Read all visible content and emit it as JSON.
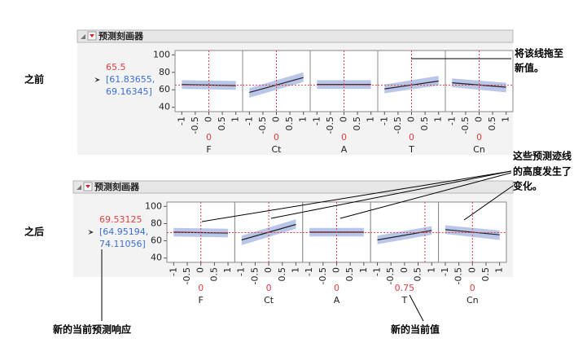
{
  "axis": {
    "ylim": [
      35,
      105
    ],
    "yticks": [
      40,
      60,
      80,
      100
    ],
    "xlim": [
      -1.25,
      1.25
    ],
    "xticks": [
      -1,
      -0.5,
      0,
      0.5,
      1
    ],
    "trace_x": [
      -1,
      1
    ]
  },
  "profilers": [
    {
      "label": "之前",
      "title": "预测刻画器",
      "response": 65.5,
      "ci": [
        "[61.83655,",
        "69.16345]"
      ],
      "factors": [
        {
          "name": "F",
          "current": 0,
          "trace": [
            66,
            64.8
          ],
          "lower": [
            61,
            60
          ],
          "upper": [
            71,
            70
          ]
        },
        {
          "name": "Ct",
          "current": 0,
          "trace": [
            57,
            74
          ],
          "lower": [
            51,
            69
          ],
          "upper": [
            62,
            80
          ]
        },
        {
          "name": "A",
          "current": 0,
          "trace": [
            66,
            66
          ],
          "lower": [
            61,
            61
          ],
          "upper": [
            71,
            71
          ]
        },
        {
          "name": "T",
          "current": 0,
          "trace": [
            61,
            70
          ],
          "lower": [
            56,
            65
          ],
          "upper": [
            66,
            76
          ]
        },
        {
          "name": "Cn",
          "current": 0,
          "trace": [
            68,
            63
          ],
          "lower": [
            63,
            57
          ],
          "upper": [
            73,
            68
          ]
        }
      ]
    },
    {
      "label": "之后",
      "title": "预测刻画器",
      "response": 69.53125,
      "ci": [
        "[64.95194,",
        "74.11056]"
      ],
      "factors": [
        {
          "name": "F",
          "current": 0,
          "trace": [
            70,
            69
          ],
          "lower": [
            65,
            64
          ],
          "upper": [
            75,
            74
          ]
        },
        {
          "name": "Ct",
          "current": 0,
          "trace": [
            61,
            79
          ],
          "lower": [
            55,
            74
          ],
          "upper": [
            66,
            85
          ]
        },
        {
          "name": "A",
          "current": 0,
          "trace": [
            70,
            70
          ],
          "lower": [
            65,
            65
          ],
          "upper": [
            75,
            75
          ]
        },
        {
          "name": "T",
          "current": 0.75,
          "trace": [
            61,
            72
          ],
          "lower": [
            56,
            67
          ],
          "upper": [
            66,
            77
          ]
        },
        {
          "name": "Cn",
          "current": 0,
          "trace": [
            73,
            67
          ],
          "lower": [
            68,
            61
          ],
          "upper": [
            78,
            72
          ]
        }
      ]
    }
  ],
  "annotations": {
    "drag": [
      "将该线拖至",
      "新值。"
    ],
    "traces": [
      "这些预测迹线",
      "的高度发生了",
      "变化。"
    ],
    "new_response": "新的当前预测响应",
    "new_value": "新的当前值"
  }
}
